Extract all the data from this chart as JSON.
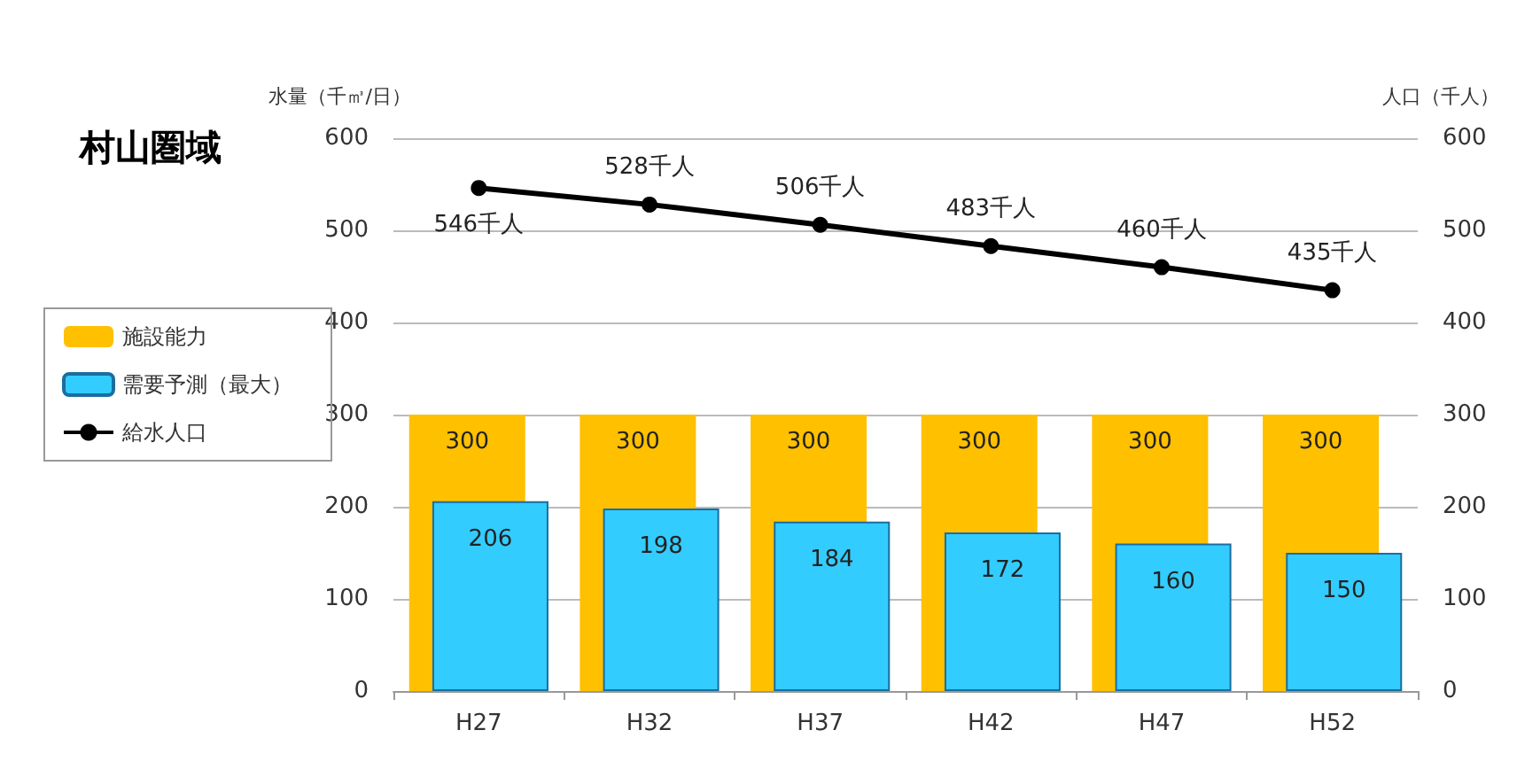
{
  "chart_data": {
    "type": "bar",
    "title": "村山圏域",
    "ylabel": "水量（千㎥/日）",
    "y2label": "人口（千人）",
    "categories": [
      "H27",
      "H32",
      "H37",
      "H42",
      "H47",
      "H52"
    ],
    "series": [
      {
        "name": "施設能力",
        "color": "#ffc000",
        "values": [
          300,
          300,
          300,
          300,
          300,
          300
        ],
        "value_labels": [
          "300",
          "300",
          "300",
          "300",
          "300",
          "300"
        ]
      },
      {
        "name": "需要予測（最大）",
        "color": "#33ccff",
        "values": [
          206,
          198,
          184,
          172,
          160,
          150
        ],
        "value_labels": [
          "206",
          "198",
          "184",
          "172",
          "160",
          "150"
        ]
      },
      {
        "name": "給水人口",
        "type": "line",
        "axis": "y2",
        "color": "#000000",
        "marker": "circle",
        "values": [
          546,
          528,
          506,
          483,
          460,
          435
        ],
        "value_labels": [
          "546千人",
          "528千人",
          "506千人",
          "483千人",
          "460千人",
          "435千人"
        ]
      }
    ],
    "ylim": [
      0,
      600
    ],
    "yticks": [
      0,
      100,
      200,
      300,
      400,
      500,
      600
    ],
    "y2lim": [
      0,
      600
    ],
    "y2ticks": [
      0,
      100,
      200,
      300,
      400,
      500,
      600
    ],
    "grid": "y",
    "legend": "left"
  }
}
